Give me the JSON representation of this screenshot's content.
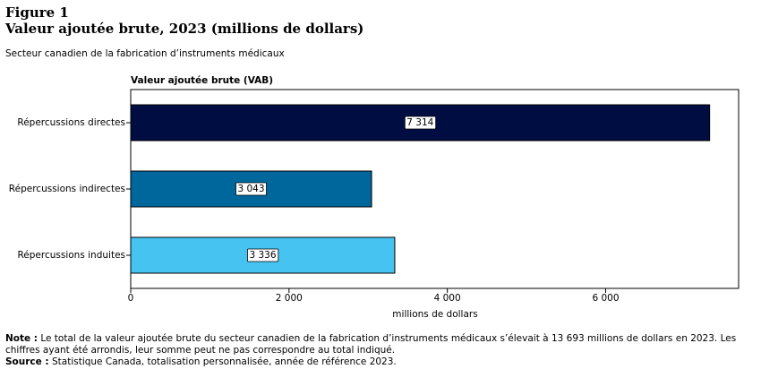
{
  "chart_data": {
    "type": "bar",
    "orientation": "horizontal",
    "figure_label": "Figure 1",
    "title": "Valeur ajoutée brute, 2023 (millions de dollars)",
    "subtitle": "Secteur canadien de la fabrication d’instruments médicaux",
    "plot_title": "Valeur ajoutée brute (VAB)",
    "x_label": "millions de dollars",
    "categories": [
      "Répercussions directes",
      "Répercussions indirectes",
      "Répercussions induites"
    ],
    "values": [
      7314,
      3043,
      3336
    ],
    "value_labels": [
      "7 314",
      "3 043",
      "3 336"
    ],
    "colors": [
      "#000d42",
      "#00679c",
      "#46c3f0"
    ],
    "xlim": [
      0,
      7680
    ],
    "xticks": [
      0,
      {
        "value": 2000,
        "label": "2 000"
      },
      {
        "value": 4000,
        "label": "4 000"
      },
      {
        "value": 6000,
        "label": "6 000"
      }
    ],
    "note_label": "Note :",
    "note": "Le total de la valeur ajoutée brute du secteur canadien de la fabrication d’instruments médicaux s’élevait à 13 693 millions de dollars en 2023. Les chiffres ayant été arrondis, leur somme peut ne pas correspondre au total indiqué.",
    "source_label": "Source :",
    "source": "Statistique Canada, totalisation personnalisée, année de référence 2023."
  }
}
